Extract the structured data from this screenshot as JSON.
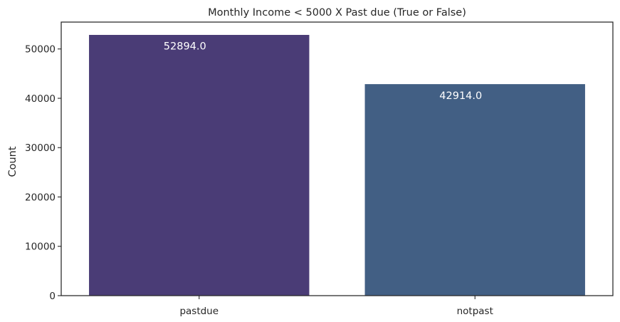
{
  "chart_data": {
    "type": "bar",
    "title": "Monthly Income <  5000  X   Past due (True or False)",
    "xlabel": "",
    "ylabel": "Count",
    "categories": [
      "pastdue",
      "notpast"
    ],
    "values": [
      52894.0,
      42914.0
    ],
    "data_labels": [
      "52894.0",
      "42914.0"
    ],
    "colors": [
      "#4a3c76",
      "#425f84"
    ],
    "ylim": [
      0,
      55448
    ],
    "yticks": [
      0,
      10000,
      20000,
      30000,
      40000,
      50000
    ],
    "ytick_labels": [
      "0",
      "10000",
      "20000",
      "30000",
      "40000",
      "50000"
    ],
    "grid": false
  }
}
